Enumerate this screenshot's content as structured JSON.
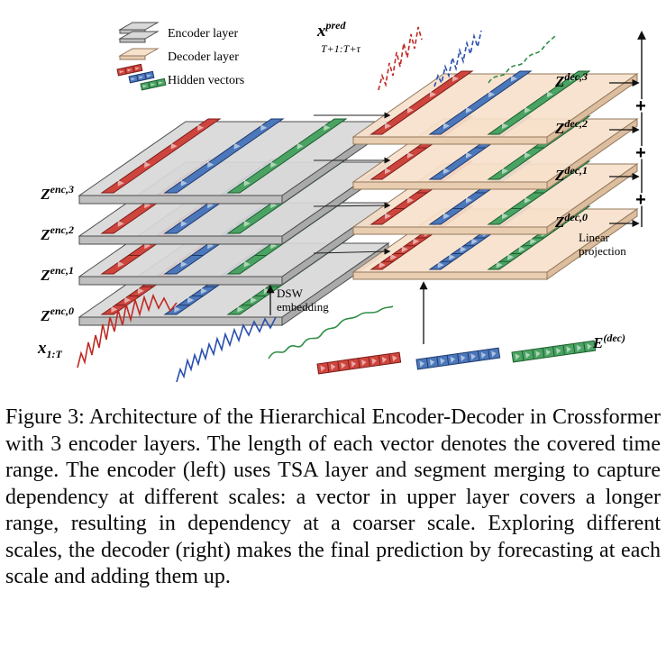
{
  "figure": {
    "legend": {
      "encoder": {
        "label": "Encoder layer"
      },
      "decoder": {
        "label": "Decoder layer"
      },
      "hidden": {
        "label": "Hidden vectors"
      }
    },
    "colors": {
      "encoder": {
        "top": "#d8d8d8",
        "front": "#bfbfbf",
        "side": "#aaaaaa",
        "stroke": "#4d4d4d"
      },
      "decoder": {
        "top": "#f6e1cb",
        "front": "#e9cdb0",
        "side": "#dcbd9e",
        "stroke": "#93795c"
      },
      "vectors": [
        {
          "name": "red",
          "fill": "#ce453e",
          "stroke": "#7c1d18"
        },
        {
          "name": "blue",
          "fill": "#4c78bb",
          "stroke": "#1d3a6e"
        },
        {
          "name": "green",
          "fill": "#4aa363",
          "stroke": "#1c5e2e"
        }
      ],
      "series": {
        "red": "#c02a24",
        "blue": "#2a4fb0",
        "green": "#2f8f46"
      }
    },
    "labels": {
      "x_pred_base": "x",
      "x_pred_sup": "pred",
      "x_pred_sub": "T+1:T+τ",
      "x_input_base": "x",
      "x_input_sub": "1:T",
      "e_dec_base": "E",
      "e_dec_sup": "(dec)",
      "dsw_line1": "DSW",
      "dsw_line2": "embedding",
      "linear_line1": "Linear",
      "linear_line2": "projection",
      "plus": "+"
    },
    "encoder_layers": [
      {
        "base": "Z",
        "sup": "enc,3",
        "segments": 1
      },
      {
        "base": "Z",
        "sup": "enc,2",
        "segments": 2
      },
      {
        "base": "Z",
        "sup": "enc,1",
        "segments": 4
      },
      {
        "base": "Z",
        "sup": "enc,0",
        "segments": 8
      }
    ],
    "decoder_layers": [
      {
        "base": "Z",
        "sup": "dec,3",
        "segments": 1
      },
      {
        "base": "Z",
        "sup": "dec,2",
        "segments": 2
      },
      {
        "base": "Z",
        "sup": "dec,1",
        "segments": 4
      },
      {
        "base": "Z",
        "sup": "dec,0",
        "segments": 8
      }
    ]
  },
  "caption": {
    "text": "Figure 3: Architecture of the Hierarchical Encoder-Decoder in Crossformer with 3 encoder layers. The length of each vector denotes the covered time range. The encoder (left) uses TSA layer and segment merging to capture dependency at different scales: a vector in upper layer covers a longer range, resulting in dependency at a coarser scale. Exploring different scales, the decoder (right) makes the final prediction by forecasting at each scale and adding them up."
  }
}
